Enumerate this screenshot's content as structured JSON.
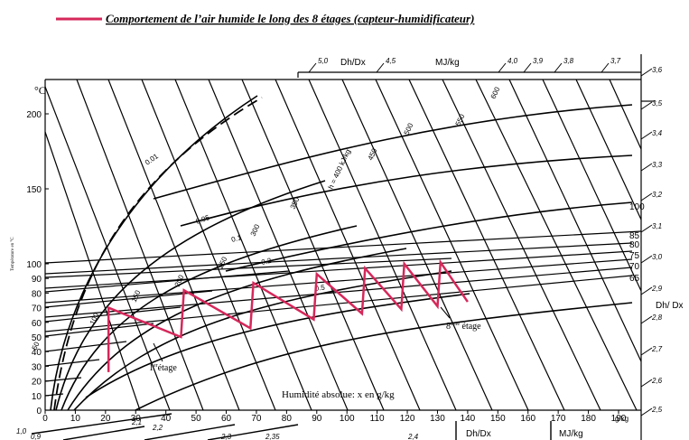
{
  "legend": {
    "label": "Comportement de l’air humide le long des 8 étages (capteur-humidificateur)",
    "color": "#d6275a"
  },
  "chart_data": {
    "type": "line",
    "title": "",
    "xlabel": "Humidité absolue: x en  g/kg",
    "xunit": "g/kg",
    "ylabel": "Température en °C",
    "yunit": "°C",
    "xlim": [
      0,
      200
    ],
    "ylim": [
      0,
      210
    ],
    "x_ticks": [
      0,
      10,
      20,
      30,
      40,
      50,
      60,
      70,
      80,
      90,
      100,
      110,
      120,
      130,
      140,
      150,
      160,
      170,
      180,
      190
    ],
    "y_ticks_left": [
      0,
      10,
      20,
      30,
      40,
      50,
      60,
      70,
      80,
      90,
      100,
      150,
      200
    ],
    "y_ticks_right": [
      65,
      70,
      75,
      80,
      85,
      100
    ],
    "dhdx_top_label": "Dh/Dx",
    "mj_top_label": "MJ/kg",
    "dhdx_right_label": "Dh/ Dx",
    "dhdx_bottom_label": "Dh/Dx",
    "mj_bottom_label": "MJ/kg",
    "dhdx_top_scale": [
      "5,0",
      "4,5",
      "4,0",
      "3,9",
      "3,8",
      "3,7"
    ],
    "dhdx_right_scale": [
      "3,6",
      "3,5",
      "3,4",
      "3,3",
      "3,2",
      "3,1",
      "3,0",
      "2,9",
      "2,8",
      "2,7",
      "2,6",
      "2,5"
    ],
    "dhdx_bottom_scale": [
      "1,0",
      "0,9",
      "2,1",
      "2,2",
      "2,3",
      "2,35",
      "2,4"
    ],
    "enthalpy_labels": [
      "50",
      "100",
      "150",
      "200",
      "250",
      "300",
      "350",
      "h = 400 kJ/kg",
      "450",
      "500",
      "550",
      "600"
    ],
    "rh_labels": [
      "0.01",
      "0.05",
      "0.1",
      "0.2",
      "0.5"
    ],
    "annotations": {
      "first_stage": "1",
      "first_stage_sup": "er",
      "first_stage_rest": "étage",
      "last_stage": "8",
      "last_stage_sup": "ème",
      "last_stage_rest": " étage"
    },
    "series": [
      {
        "color": "#d6275a",
        "x": [
          21,
          21,
          45,
          46,
          68,
          69,
          89,
          90,
          105,
          106,
          118,
          119,
          130,
          131,
          140
        ],
        "y": [
          26,
          70,
          50,
          82,
          56,
          87,
          62,
          93,
          66,
          97,
          69,
          100,
          71,
          101,
          74
        ]
      }
    ]
  }
}
